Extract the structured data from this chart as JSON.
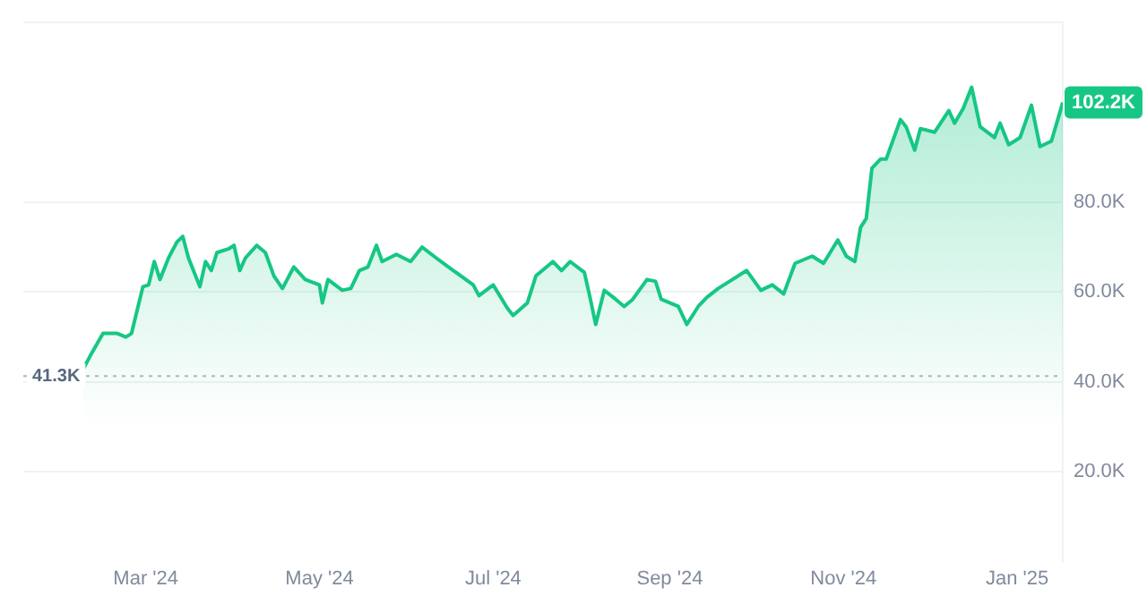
{
  "chart_data": {
    "type": "area",
    "x": [
      "2024-02-08",
      "2024-02-11",
      "2024-02-15",
      "2024-02-20",
      "2024-02-23",
      "2024-02-25",
      "2024-02-29",
      "2024-03-02",
      "2024-03-04",
      "2024-03-06",
      "2024-03-09",
      "2024-03-12",
      "2024-03-14",
      "2024-03-16",
      "2024-03-18",
      "2024-03-20",
      "2024-03-22",
      "2024-03-24",
      "2024-03-26",
      "2024-03-30",
      "2024-04-01",
      "2024-04-03",
      "2024-04-05",
      "2024-04-09",
      "2024-04-12",
      "2024-04-15",
      "2024-04-18",
      "2024-04-22",
      "2024-04-26",
      "2024-05-01",
      "2024-05-02",
      "2024-05-04",
      "2024-05-09",
      "2024-05-12",
      "2024-05-15",
      "2024-05-18",
      "2024-05-21",
      "2024-05-23",
      "2024-05-28",
      "2024-06-02",
      "2024-06-06",
      "2024-06-11",
      "2024-06-17",
      "2024-06-24",
      "2024-06-26",
      "2024-07-01",
      "2024-07-06",
      "2024-07-08",
      "2024-07-13",
      "2024-07-16",
      "2024-07-22",
      "2024-07-25",
      "2024-07-28",
      "2024-08-02",
      "2024-08-04",
      "2024-08-06",
      "2024-08-09",
      "2024-08-13",
      "2024-08-16",
      "2024-08-19",
      "2024-08-24",
      "2024-08-27",
      "2024-08-29",
      "2024-09-04",
      "2024-09-07",
      "2024-09-11",
      "2024-09-14",
      "2024-09-18",
      "2024-09-22",
      "2024-09-28",
      "2024-10-03",
      "2024-10-07",
      "2024-10-11",
      "2024-10-15",
      "2024-10-21",
      "2024-10-25",
      "2024-10-30",
      "2024-11-02",
      "2024-11-05",
      "2024-11-07",
      "2024-11-09",
      "2024-11-11",
      "2024-11-14",
      "2024-11-16",
      "2024-11-21",
      "2024-11-23",
      "2024-11-26",
      "2024-11-28",
      "2024-12-03",
      "2024-12-08",
      "2024-12-10",
      "2024-12-13",
      "2024-12-16",
      "2024-12-19",
      "2024-12-24",
      "2024-12-26",
      "2024-12-29",
      "2025-01-02",
      "2025-01-06",
      "2025-01-09",
      "2025-01-13",
      "2025-01-17"
    ],
    "series": [
      {
        "color": "#16c784",
        "values": [
          42800,
          46400,
          50800,
          50800,
          50000,
          50800,
          61200,
          61600,
          66800,
          62800,
          67600,
          71200,
          72400,
          67600,
          64400,
          61200,
          66800,
          64800,
          68800,
          69600,
          70400,
          64800,
          67600,
          70400,
          68800,
          63600,
          60800,
          65600,
          62800,
          61600,
          57600,
          62800,
          60400,
          60800,
          64800,
          65600,
          70400,
          66800,
          68400,
          66800,
          70000,
          67600,
          64800,
          61600,
          59200,
          61600,
          56400,
          54800,
          57600,
          63600,
          66800,
          64800,
          66800,
          64400,
          58800,
          52800,
          60400,
          58400,
          56800,
          58400,
          62800,
          62400,
          58400,
          56800,
          52800,
          56800,
          58800,
          60800,
          62400,
          64800,
          60400,
          61600,
          59600,
          66400,
          68000,
          66400,
          71600,
          68000,
          66800,
          74400,
          76400,
          87600,
          89600,
          89600,
          98400,
          96800,
          91600,
          96400,
          95600,
          100400,
          97600,
          100800,
          105600,
          96800,
          94400,
          97600,
          92800,
          94400,
          101600,
          92400,
          93600,
          102200
        ]
      }
    ],
    "xlim": [
      "2024-01-18",
      "2025-01-17"
    ],
    "xticks": [
      {
        "value": "2024-03-01",
        "label": "Mar '24"
      },
      {
        "value": "2024-05-01",
        "label": "May '24"
      },
      {
        "value": "2024-07-01",
        "label": "Jul '24"
      },
      {
        "value": "2024-09-01",
        "label": "Sep '24"
      },
      {
        "value": "2024-11-01",
        "label": "Nov '24"
      },
      {
        "value": "2025-01-01",
        "label": "Jan '25"
      }
    ],
    "ylim": [
      0,
      120000
    ],
    "yticks": [
      {
        "value": 20000,
        "label": "20.0K"
      },
      {
        "value": 40000,
        "label": "40.0K"
      },
      {
        "value": 60000,
        "label": "60.0K"
      },
      {
        "value": 80000,
        "label": "80.0K"
      },
      {
        "value": 120000,
        "label": null
      }
    ],
    "grid": "y",
    "ref_lines": [
      {
        "axis": "y",
        "value": 41300,
        "label": "41.3K",
        "line_style": "dotted",
        "color": "#b0b4bc"
      }
    ],
    "annotations": [
      {
        "text": "102.2K",
        "x": "2025-01-17",
        "y": 102200
      }
    ],
    "legend": false,
    "marker": "none"
  }
}
